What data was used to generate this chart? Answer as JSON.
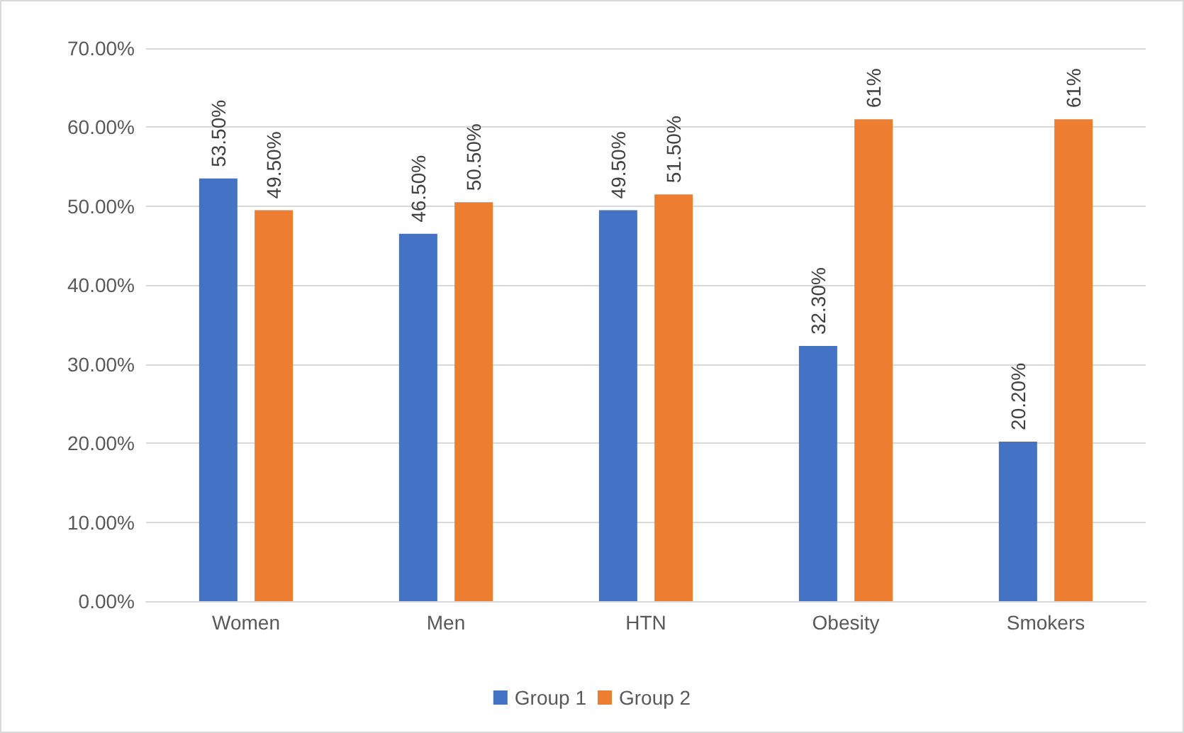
{
  "chart_data": {
    "type": "bar",
    "categories": [
      "Women",
      "Men",
      "HTN",
      "Obesity",
      "Smokers"
    ],
    "series": [
      {
        "name": "Group 1",
        "color": "#4472c4",
        "values": [
          53.5,
          46.5,
          49.5,
          32.3,
          20.2
        ],
        "value_labels": [
          "53.50%",
          "46.50%",
          "49.50%",
          "32.30%",
          "20.20%"
        ]
      },
      {
        "name": "Group 2",
        "color": "#ed7d31",
        "values": [
          49.5,
          50.5,
          51.5,
          61,
          61
        ],
        "value_labels": [
          "49.50%",
          "50.50%",
          "51.50%",
          "61%",
          "61%"
        ]
      }
    ],
    "ylim": [
      0,
      70
    ],
    "yticks": [
      {
        "value": 0,
        "label": "0.00%"
      },
      {
        "value": 10,
        "label": "10.00%"
      },
      {
        "value": 20,
        "label": "20.00%"
      },
      {
        "value": 30,
        "label": "30.00%"
      },
      {
        "value": 40,
        "label": "40.00%"
      },
      {
        "value": 50,
        "label": "50.00%"
      },
      {
        "value": 60,
        "label": "60.00%"
      },
      {
        "value": 70,
        "label": "70.00%"
      }
    ],
    "grid": "y",
    "legend": "bottom"
  }
}
